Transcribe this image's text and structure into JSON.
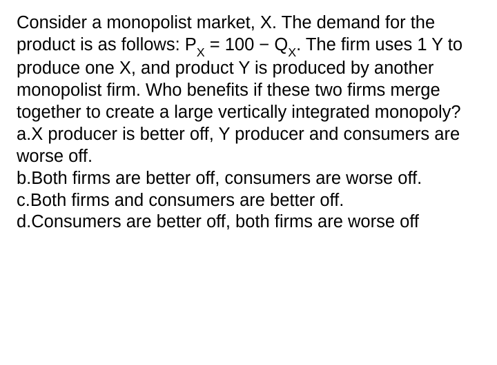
{
  "question": {
    "line1": "Consider a monopolist market, X. The demand for the product is as follows: P",
    "sub1": "X",
    "line2": " = 100 − Q",
    "sub2": "X",
    "line3": ". The firm uses 1 Y to produce one X, and product Y is produced by another monopolist firm. Who benefits if these two firms merge together to create a large vertically integrated monopoly?",
    "optionA": "a.X producer is better off, Y producer and consumers are worse off.",
    "optionB": "b.Both firms are better off, consumers are worse off.",
    "optionC": "c.Both firms and consumers are better off.",
    "optionD": "d.Consumers are better off, both firms are worse off"
  },
  "styles": {
    "font_size": 25.5,
    "line_height": 1.25,
    "text_color": "#000000",
    "background_color": "#ffffff"
  }
}
